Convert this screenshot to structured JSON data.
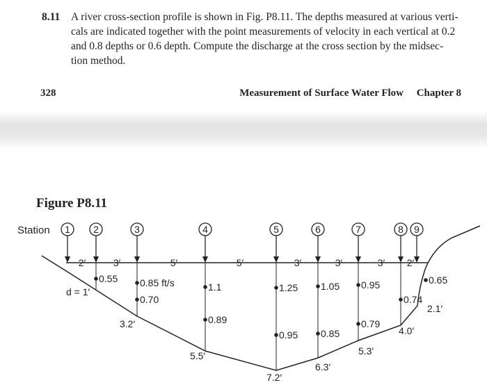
{
  "problem": {
    "number": "8.11",
    "lines": [
      "A river cross-section profile is shown in Fig. P8.11. The depths measured at various verti-",
      "cals are indicated together with the point measurements of velocity in each vertical at 0.2",
      "and 0.8 depths or 0.6 depth. Compute the discharge at the cross section by the midsec-",
      "tion method."
    ]
  },
  "header": {
    "page": "328",
    "title": "Measurement of Surface Water Flow",
    "chapter": "Chapter 8"
  },
  "figure": {
    "title": "Figure P8.11",
    "station_label": "Station",
    "stations": [
      "1",
      "2",
      "3",
      "4",
      "5",
      "6",
      "7",
      "8",
      "9"
    ],
    "spacings": [
      "2′",
      "3′",
      "5′",
      "5′",
      "3′",
      "3′",
      "3′",
      "2′"
    ],
    "depths": [
      "d = 1′",
      "3.2′",
      "5.5′",
      "7.2′",
      "6.3′",
      "5.3′",
      "4.0′",
      "2.1′"
    ],
    "velocities": [
      "0.55",
      "0.85 ft/s",
      "0.70",
      "1.1",
      "0.89",
      "1.25",
      "0.95",
      "1.05",
      "0.85",
      "0.95",
      "0.79",
      "0.74",
      "0.65"
    ]
  }
}
